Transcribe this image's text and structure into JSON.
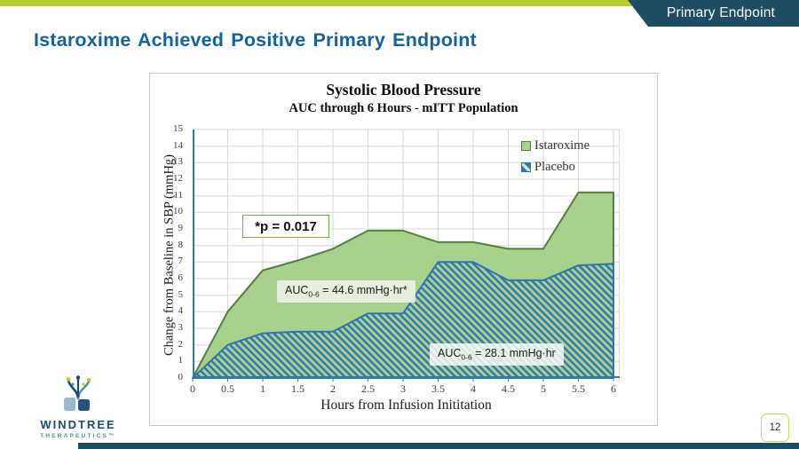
{
  "header": {
    "tab_label": "Primary Endpoint"
  },
  "slide": {
    "title": "Istaroxime Achieved Positive Primary Endpoint",
    "page_number": "12"
  },
  "footer_logo": {
    "name": "WINDTREE",
    "sub": "THERAPEUTICS™"
  },
  "chart": {
    "title": "Systolic Blood Pressure",
    "subtitle": "AUC through 6 Hours - mITT Population",
    "y_axis_title": "Change from Baseline in SBP (mmHg)",
    "x_axis_title": "Hours from Infusion Inititation",
    "legend": [
      {
        "label": "Istaroxime"
      },
      {
        "label": "Placebo"
      }
    ],
    "annotations": {
      "p_value": "*p = 0.017",
      "auc_istaroxime": {
        "prefix": "AUC",
        "sub": "0-6",
        "rest": " = 44.6 mmHg·hr*"
      },
      "auc_placebo": {
        "prefix": "AUC",
        "sub": "0-6",
        "rest": " = 28.1 mmHg·hr"
      }
    }
  },
  "chart_data": {
    "type": "area",
    "x": [
      0,
      0.5,
      1,
      1.5,
      2,
      2.5,
      3,
      3.5,
      4,
      4.5,
      5,
      5.5,
      6
    ],
    "series": [
      {
        "name": "Istaroxime",
        "values": [
          0,
          4.0,
          6.5,
          7.1,
          7.8,
          8.9,
          8.9,
          8.2,
          8.2,
          7.8,
          7.8,
          11.2,
          11.2
        ],
        "fill": "#a9d18e",
        "stroke": "#538135"
      },
      {
        "name": "Placebo",
        "values": [
          0,
          2.0,
          2.7,
          2.8,
          2.8,
          3.9,
          3.9,
          7.0,
          7.0,
          5.9,
          5.9,
          6.8,
          6.9
        ],
        "fill": "hatch",
        "hatch_color": "#2e75b6",
        "stroke": "#2e75b6"
      }
    ],
    "xlim": [
      0,
      6
    ],
    "ylim": [
      0,
      15
    ],
    "x_ticks": [
      0,
      0.5,
      1,
      1.5,
      2,
      2.5,
      3,
      3.5,
      4,
      4.5,
      5,
      5.5,
      6
    ],
    "y_ticks": [
      0,
      1,
      2,
      3,
      4,
      5,
      6,
      7,
      8,
      9,
      10,
      11,
      12,
      13,
      14,
      15
    ],
    "grid": true,
    "legend_position": "top-right",
    "auc_istaroxime_0_6": 44.6,
    "auc_placebo_0_6": 28.1,
    "p_value": 0.017
  },
  "colors": {
    "accent_green": "#b6cc33",
    "navy": "#1e4d63",
    "title_blue": "#15639e",
    "axis_teal": "#2f7ba0",
    "gridline": "#d9d9d9"
  }
}
